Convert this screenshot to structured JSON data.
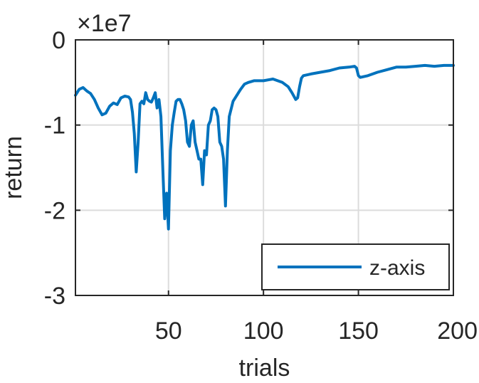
{
  "chart_data": {
    "type": "line",
    "xlabel": "trials",
    "ylabel": "return",
    "exponent_label": "×1e7",
    "xlim": [
      1,
      200
    ],
    "ylim": [
      -3,
      0
    ],
    "xticks": [
      50,
      100,
      150,
      200
    ],
    "xtick_labels": [
      "50",
      "100",
      "150",
      "200"
    ],
    "yticks": [
      0,
      -1,
      -2,
      -3
    ],
    "ytick_labels": [
      "0",
      "-1",
      "-2",
      "-3"
    ],
    "grid": true,
    "legend_position": "bottom-right",
    "colors": {
      "series": "#0072BD",
      "grid": "#dcdcdc",
      "axis": "#262626"
    },
    "series": [
      {
        "name": "z-axis",
        "x": [
          1,
          3,
          5,
          7,
          9,
          11,
          13,
          15,
          17,
          19,
          21,
          23,
          25,
          27,
          29,
          30,
          31,
          32,
          33,
          34,
          35,
          36,
          37,
          38,
          39,
          40,
          41,
          42,
          43,
          44,
          45,
          46,
          47,
          48,
          49,
          50,
          51,
          52,
          53,
          54,
          55,
          56,
          57,
          58,
          59,
          60,
          61,
          62,
          63,
          64,
          65,
          66,
          67,
          68,
          69,
          70,
          71,
          72,
          73,
          74,
          75,
          76,
          77,
          78,
          79,
          80,
          81,
          82,
          84,
          86,
          88,
          90,
          92,
          95,
          100,
          105,
          110,
          113,
          115,
          117,
          118,
          119,
          120,
          121,
          125,
          130,
          135,
          140,
          145,
          148,
          149,
          150,
          151,
          155,
          160,
          165,
          170,
          175,
          180,
          185,
          190,
          195,
          200
        ],
        "y": [
          -0.65,
          -0.58,
          -0.56,
          -0.6,
          -0.63,
          -0.7,
          -0.8,
          -0.88,
          -0.86,
          -0.78,
          -0.74,
          -0.76,
          -0.68,
          -0.66,
          -0.67,
          -0.7,
          -0.85,
          -1.1,
          -1.55,
          -1.2,
          -0.75,
          -0.72,
          -0.75,
          -0.62,
          -0.7,
          -0.72,
          -0.73,
          -0.68,
          -0.62,
          -0.8,
          -0.7,
          -0.9,
          -1.5,
          -2.1,
          -1.8,
          -2.22,
          -1.3,
          -1.0,
          -0.85,
          -0.72,
          -0.7,
          -0.7,
          -0.75,
          -0.82,
          -0.95,
          -1.2,
          -1.25,
          -1.0,
          -0.95,
          -1.2,
          -1.3,
          -1.4,
          -1.4,
          -1.7,
          -1.3,
          -1.35,
          -1.0,
          -0.95,
          -0.82,
          -0.8,
          -0.82,
          -0.9,
          -1.2,
          -1.25,
          -1.4,
          -1.95,
          -1.3,
          -0.9,
          -0.72,
          -0.65,
          -0.58,
          -0.52,
          -0.5,
          -0.48,
          -0.48,
          -0.46,
          -0.5,
          -0.55,
          -0.62,
          -0.7,
          -0.68,
          -0.55,
          -0.45,
          -0.42,
          -0.4,
          -0.38,
          -0.36,
          -0.33,
          -0.32,
          -0.31,
          -0.33,
          -0.42,
          -0.44,
          -0.42,
          -0.38,
          -0.35,
          -0.32,
          -0.32,
          -0.31,
          -0.3,
          -0.31,
          -0.3,
          -0.3
        ]
      }
    ]
  }
}
